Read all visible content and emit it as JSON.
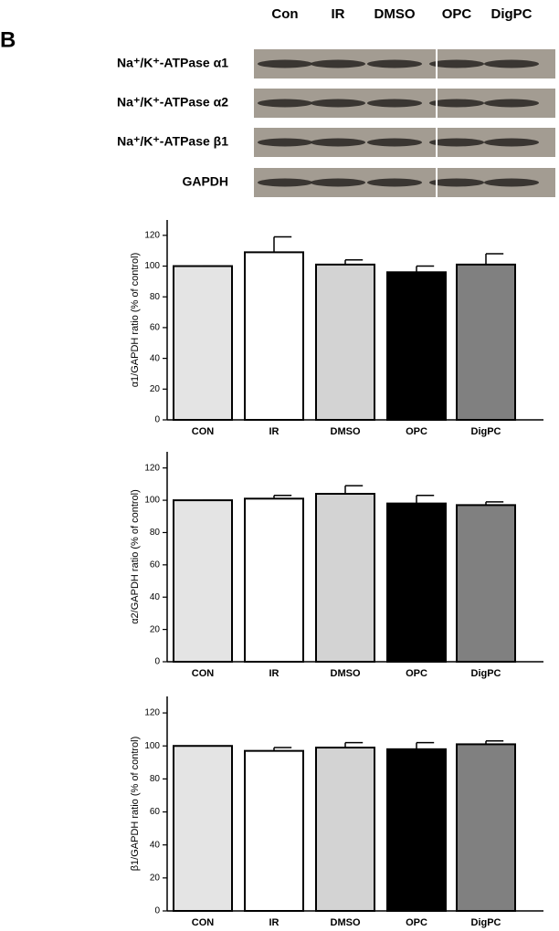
{
  "panel_label": "B",
  "blot": {
    "lanes": [
      "Con",
      "IR",
      "DMSO",
      "OPC",
      "DigPC"
    ],
    "rows": [
      "Na⁺/K⁺-ATPase α1",
      "Na⁺/K⁺-ATPase α2",
      "Na⁺/K⁺-ATPase β1",
      "GAPDH"
    ]
  },
  "chart_data": [
    {
      "type": "bar",
      "ylabel": "α1/GAPDH ratio (% of control)",
      "categories": [
        "CON",
        "IR",
        "DMSO",
        "OPC",
        "DigPC"
      ],
      "values": [
        100,
        109,
        101,
        96,
        101
      ],
      "errors": [
        0,
        10,
        3,
        4,
        7
      ],
      "colors": [
        "#e4e4e4",
        "#ffffff",
        "#d3d3d3",
        "#000000",
        "#808080"
      ],
      "ylim": [
        0,
        130
      ],
      "yticks": [
        0,
        20,
        40,
        60,
        80,
        100,
        120
      ]
    },
    {
      "type": "bar",
      "ylabel": "α2/GAPDH ratio (% of control)",
      "categories": [
        "CON",
        "IR",
        "DMSO",
        "OPC",
        "DigPC"
      ],
      "values": [
        100,
        101,
        104,
        98,
        97
      ],
      "errors": [
        0,
        2,
        5,
        5,
        2
      ],
      "colors": [
        "#e4e4e4",
        "#ffffff",
        "#d3d3d3",
        "#000000",
        "#808080"
      ],
      "ylim": [
        0,
        130
      ],
      "yticks": [
        0,
        20,
        40,
        60,
        80,
        100,
        120
      ]
    },
    {
      "type": "bar",
      "ylabel": "β1/GAPDH ratio (% of control)",
      "categories": [
        "CON",
        "IR",
        "DMSO",
        "OPC",
        "DigPC"
      ],
      "values": [
        100,
        97,
        99,
        98,
        101
      ],
      "errors": [
        0,
        2,
        3,
        4,
        2
      ],
      "colors": [
        "#e4e4e4",
        "#ffffff",
        "#d3d3d3",
        "#000000",
        "#808080"
      ],
      "ylim": [
        0,
        130
      ],
      "yticks": [
        0,
        20,
        40,
        60,
        80,
        100,
        120
      ]
    }
  ]
}
